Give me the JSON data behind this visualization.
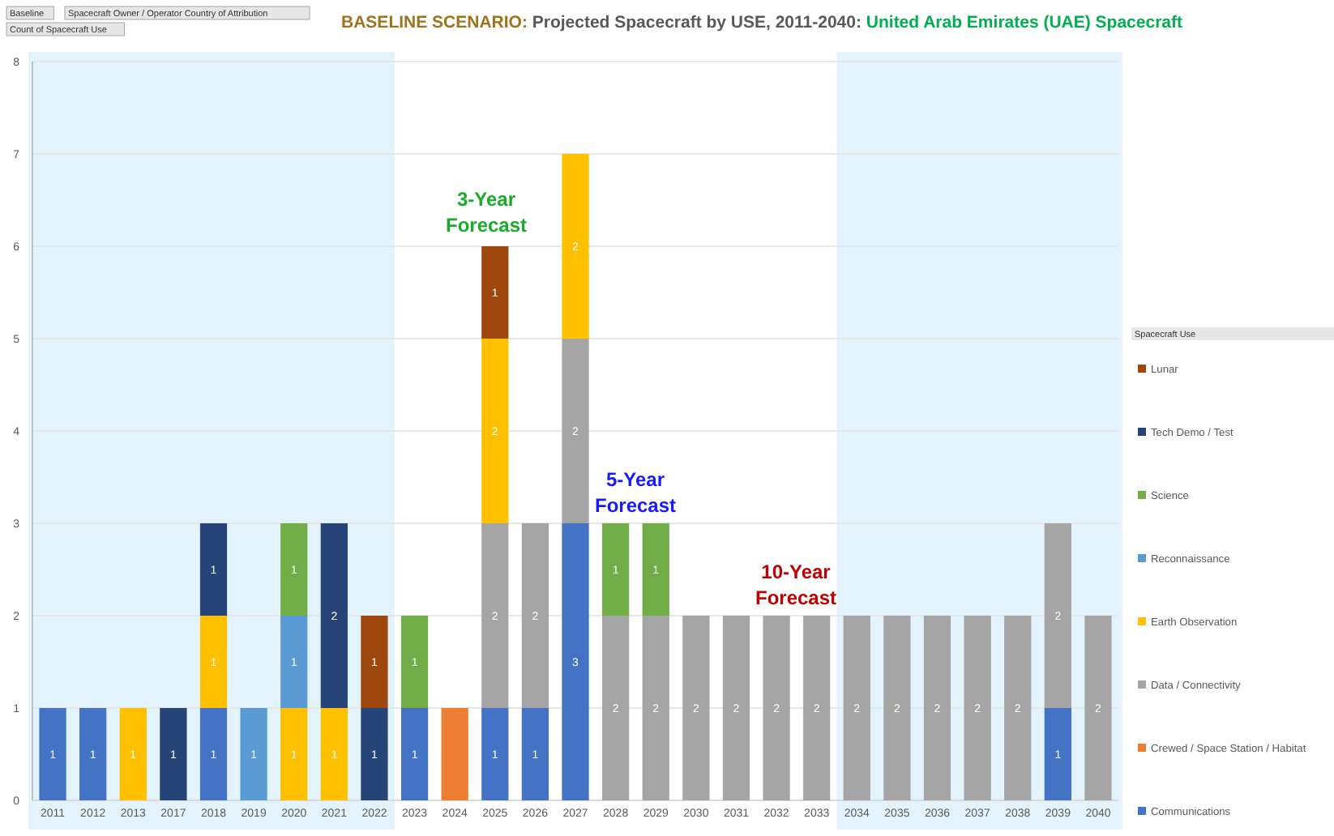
{
  "chart_data": {
    "type": "bar",
    "stacked": true,
    "title": "BASELINE SCENARIO: Projected Spacecraft by USE, 2011-2040: United Arab Emirates (UAE) Spacecraft",
    "categories": [
      "2011",
      "2012",
      "2013",
      "2017",
      "2018",
      "2019",
      "2020",
      "2021",
      "2022",
      "2023",
      "2024",
      "2025",
      "2026",
      "2027",
      "2028",
      "2029",
      "2030",
      "2031",
      "2032",
      "2033",
      "2034",
      "2035",
      "2036",
      "2037",
      "2038",
      "2039",
      "2040"
    ],
    "series": [
      {
        "name": "Communications",
        "color": "#4472c4",
        "values": [
          1,
          1,
          null,
          null,
          1,
          null,
          null,
          null,
          null,
          1,
          null,
          1,
          1,
          3,
          null,
          null,
          null,
          null,
          null,
          null,
          null,
          null,
          null,
          null,
          null,
          1,
          null
        ]
      },
      {
        "name": "Crewed / Space Station / Habitat",
        "color": "#ed7d31",
        "values": [
          null,
          null,
          null,
          null,
          null,
          null,
          null,
          null,
          null,
          null,
          1,
          null,
          null,
          null,
          null,
          null,
          null,
          null,
          null,
          null,
          null,
          null,
          null,
          null,
          null,
          null,
          null
        ],
        "value_labels": [
          null,
          null,
          null,
          null,
          null,
          null,
          null,
          null,
          null,
          null,
          null,
          null,
          null,
          null,
          null,
          null,
          null,
          null,
          null,
          null,
          null,
          null,
          null,
          null,
          null,
          null,
          null
        ]
      },
      {
        "name": "Data / Connectivity",
        "color": "#a5a5a5",
        "values": [
          null,
          null,
          null,
          null,
          null,
          null,
          null,
          null,
          null,
          null,
          null,
          2,
          2,
          2,
          2,
          2,
          2,
          2,
          2,
          2,
          2,
          2,
          2,
          2,
          2,
          2,
          2
        ]
      },
      {
        "name": "Earth Observation",
        "color": "#ffc000",
        "values": [
          null,
          null,
          1,
          null,
          1,
          null,
          1,
          1,
          null,
          null,
          null,
          2,
          null,
          2,
          null,
          null,
          null,
          null,
          null,
          null,
          null,
          null,
          null,
          null,
          null,
          null,
          null
        ]
      },
      {
        "name": "Reconnaissance",
        "color": "#5b9bd5",
        "values": [
          null,
          null,
          null,
          null,
          null,
          1,
          1,
          null,
          null,
          null,
          null,
          null,
          null,
          null,
          null,
          null,
          null,
          null,
          null,
          null,
          null,
          null,
          null,
          null,
          null,
          null,
          null
        ]
      },
      {
        "name": "Science",
        "color": "#70ad47",
        "values": [
          null,
          null,
          null,
          null,
          null,
          null,
          1,
          null,
          null,
          1,
          null,
          null,
          null,
          null,
          1,
          1,
          null,
          null,
          null,
          null,
          null,
          null,
          null,
          null,
          null,
          null,
          null
        ]
      },
      {
        "name": "Tech Demo / Test",
        "color": "#264478",
        "values": [
          null,
          null,
          null,
          1,
          1,
          null,
          null,
          2,
          1,
          null,
          null,
          null,
          null,
          null,
          null,
          null,
          null,
          null,
          null,
          null,
          null,
          null,
          null,
          null,
          null,
          null,
          null
        ]
      },
      {
        "name": "Lunar",
        "color": "#9e480e",
        "values": [
          null,
          null,
          null,
          null,
          null,
          null,
          null,
          null,
          1,
          null,
          null,
          1,
          null,
          null,
          null,
          null,
          null,
          null,
          null,
          null,
          null,
          null,
          null,
          null,
          null,
          null,
          null
        ]
      }
    ],
    "ylim": [
      0,
      8
    ],
    "yticks": [
      0,
      1,
      2,
      3,
      4,
      5,
      6,
      7,
      8
    ],
    "grid": "y",
    "data_labels": true,
    "legend": "right",
    "legend_title": "Spacecraft Use",
    "bands": [
      {
        "axis": "x",
        "from": "2011",
        "to": "2022",
        "color": "#e2f3fb"
      },
      {
        "axis": "x",
        "from": "2034",
        "to": "2040",
        "color": "#e2f3fb"
      }
    ],
    "annotations": [
      "Baseline",
      "Spacecraft Owner / Operator Country of Attribution",
      "Count of Spacecraft Use",
      "3-Year Forecast",
      "5-Year Forecast",
      "10-Year Forecast"
    ]
  }
}
